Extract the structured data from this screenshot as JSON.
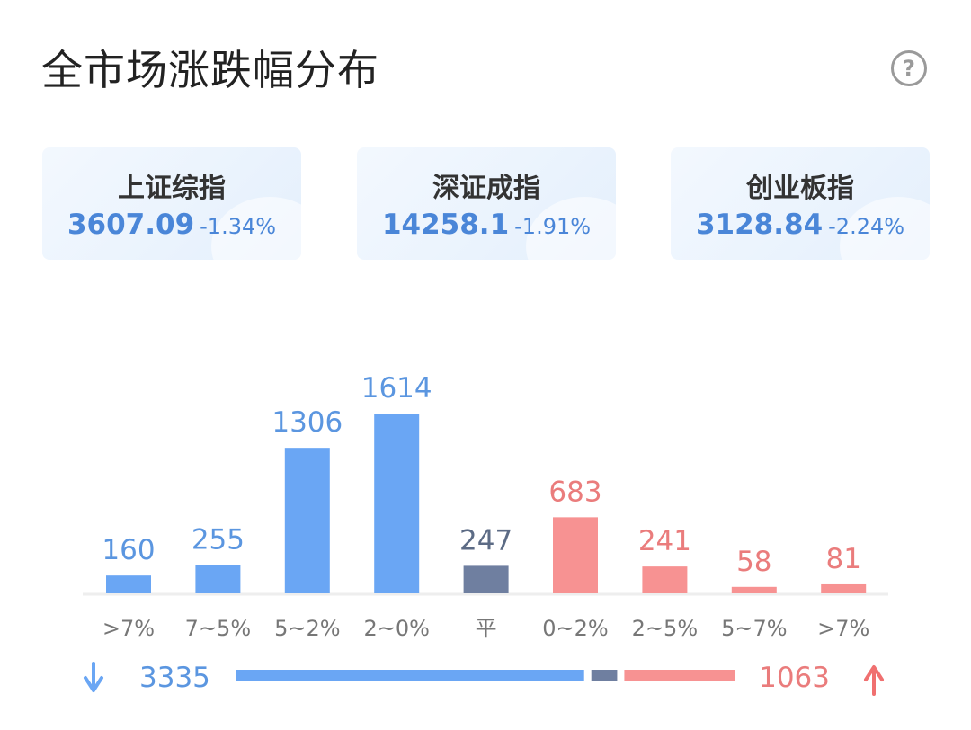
{
  "header": {
    "title": "全市场涨跌幅分布",
    "help_icon": "question-circle-icon",
    "help_glyph": "?"
  },
  "indices": [
    {
      "name": "上证综指",
      "price": "3607.09",
      "change": "-1.34%"
    },
    {
      "name": "深证成指",
      "price": "14258.1",
      "change": "-1.91%"
    },
    {
      "name": "创业板指",
      "price": "3128.84",
      "change": "-2.24%"
    }
  ],
  "colors": {
    "down": "#6aa6f4",
    "flat": "#6f7fa0",
    "up": "#f79292",
    "down_text": "#5b96e0",
    "flat_text": "#5c6b85",
    "up_text": "#ea7c7c",
    "axis_text": "#777777",
    "baseline": "#eeeeee"
  },
  "chart_data": {
    "type": "bar",
    "categories": [
      ">7%",
      "7~5%",
      "5~2%",
      "2~0%",
      "平",
      "0~2%",
      "2~5%",
      "5~7%",
      ">7%"
    ],
    "values": [
      160,
      255,
      1306,
      1614,
      247,
      683,
      241,
      58,
      81
    ],
    "groups": [
      "down",
      "down",
      "down",
      "down",
      "flat",
      "up",
      "up",
      "up",
      "up"
    ],
    "data_labels": [
      "160",
      "255",
      "1306",
      "1614",
      "247",
      "683",
      "241",
      "58",
      "81"
    ],
    "ylim": [
      0,
      1614
    ],
    "grid": false,
    "summary": {
      "down_total": 3335,
      "flat_total": 247,
      "up_total": 1063,
      "down_label": "3335",
      "up_label": "1063",
      "down_icon": "arrow-down-icon",
      "up_icon": "arrow-up-icon"
    }
  }
}
